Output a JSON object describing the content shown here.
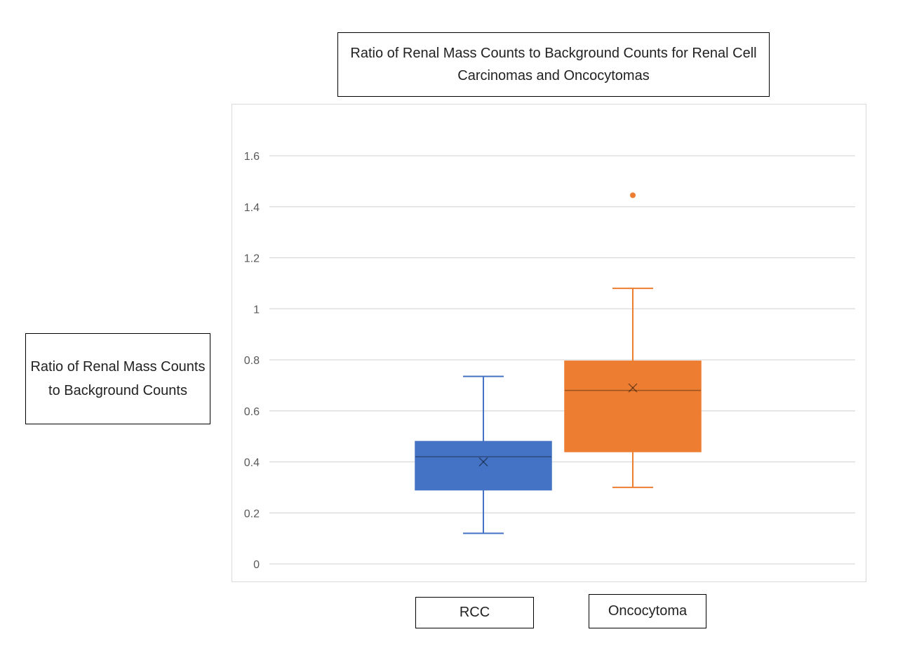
{
  "chart_data": {
    "type": "box",
    "title": "Ratio of Renal Mass Counts to Background Counts for Renal Cell Carcinomas and Oncocytomas",
    "ylabel": "Ratio of Renal Mass Counts to Background Counts",
    "xlabel": "",
    "ylim": [
      0,
      1.6
    ],
    "yticks": [
      "0",
      "0.2",
      "0.4",
      "0.6",
      "0.8",
      "1",
      "1.2",
      "1.4",
      "1.6"
    ],
    "ytick_values": [
      0,
      0.2,
      0.4,
      0.6,
      0.8,
      1.0,
      1.2,
      1.4,
      1.6
    ],
    "grid": true,
    "categories": [
      "RCC",
      "Oncocytoma"
    ],
    "series": [
      {
        "category": "RCC",
        "color": "#4472C4",
        "min": 0.12,
        "q1": 0.29,
        "median": 0.42,
        "q3": 0.48,
        "max": 0.735,
        "mean": 0.4,
        "outliers": []
      },
      {
        "category": "Oncocytoma",
        "color": "#ED7D31",
        "min": 0.3,
        "q1": 0.44,
        "median": 0.68,
        "q3": 0.795,
        "max": 1.08,
        "mean": 0.69,
        "outliers": [
          1.445
        ]
      }
    ]
  }
}
